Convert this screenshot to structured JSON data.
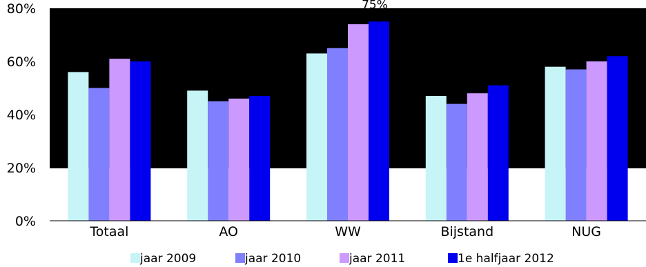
{
  "chart_data": {
    "type": "bar",
    "title": "",
    "xlabel": "",
    "ylabel": "",
    "categories": [
      "Totaal",
      "AO",
      "WW",
      "Bijstand",
      "NUG"
    ],
    "series": [
      {
        "name": "jaar 2009",
        "color": "#c6f4f7",
        "values": [
          56,
          49,
          63,
          47,
          58
        ]
      },
      {
        "name": "jaar 2010",
        "color": "#8080ff",
        "values": [
          50,
          45,
          65,
          44,
          57
        ]
      },
      {
        "name": "jaar 2011",
        "color": "#cc99ff",
        "values": [
          61,
          46,
          74,
          48,
          60
        ]
      },
      {
        "name": "1e halfjaar 2012",
        "color": "#0000ee",
        "values": [
          60,
          47,
          75,
          51,
          62
        ]
      }
    ],
    "ylim": [
      0,
      80
    ],
    "yticks": [
      "0%",
      "20%",
      "40%",
      "60%",
      "80%"
    ],
    "data_labels": [
      {
        "series": 3,
        "category": 2,
        "text": "75%"
      }
    ],
    "legend_position": "bottom",
    "plot_background": "#000000"
  }
}
